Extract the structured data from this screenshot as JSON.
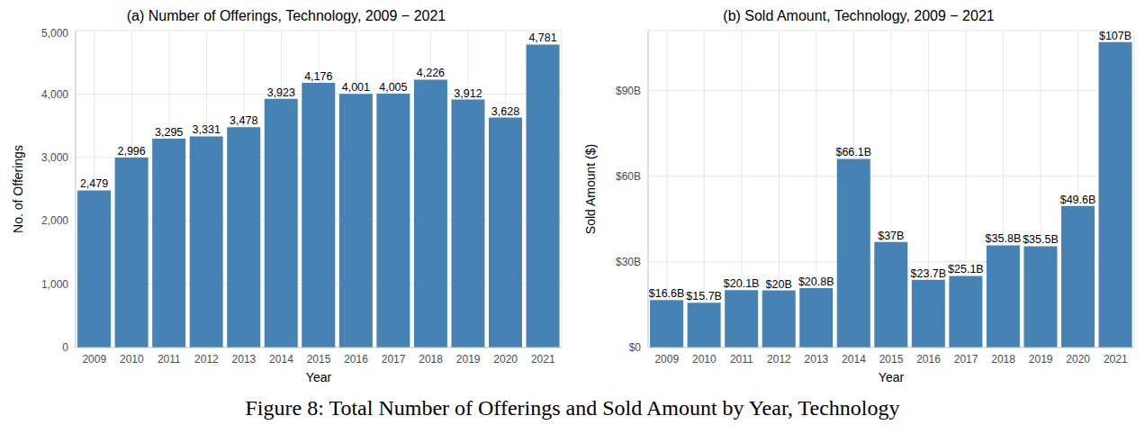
{
  "caption": "Figure 8: Total Number of Offerings and Sold Amount by Year, Technology",
  "chart_data": [
    {
      "type": "bar",
      "title": "(a) Number of Offerings, Technology, 2009 − 2021",
      "x_label": "Year",
      "y_label": "No. of Offerings",
      "categories": [
        "2009",
        "2010",
        "2011",
        "2012",
        "2013",
        "2014",
        "2015",
        "2016",
        "2017",
        "2018",
        "2019",
        "2020",
        "2021"
      ],
      "values": [
        2479,
        2996,
        3295,
        3331,
        3478,
        3923,
        4176,
        4001,
        4005,
        4226,
        3912,
        3628,
        4781
      ],
      "value_labels": [
        "2,479",
        "2,996",
        "3,295",
        "3,331",
        "3,478",
        "3,923",
        "4,176",
        "4,001",
        "4,005",
        "4,226",
        "3,912",
        "3,628",
        "4,781"
      ],
      "data_labels": true,
      "color": "#4682b4",
      "ylim": [
        0,
        5000
      ],
      "yticks": [
        0,
        {
          "value": 1000,
          "label": "1,000"
        },
        {
          "value": 2000,
          "label": "2,000"
        },
        {
          "value": 3000,
          "label": "3,000"
        },
        {
          "value": 4000,
          "label": "4,000"
        },
        {
          "value": 5000,
          "label": "5,000"
        }
      ],
      "grid": true
    },
    {
      "type": "bar",
      "title": "(b) Sold Amount, Technology, 2009 − 2021",
      "x_label": "Year",
      "y_label": "Sold Amount ($)",
      "categories": [
        "2009",
        "2010",
        "2011",
        "2012",
        "2013",
        "2014",
        "2015",
        "2016",
        "2017",
        "2018",
        "2019",
        "2020",
        "2021"
      ],
      "values": [
        16600000000,
        15700000000,
        20100000000,
        20000000000,
        20800000000,
        66100000000,
        37000000000,
        23700000000,
        25100000000,
        35800000000,
        35500000000,
        49600000000,
        107000000000
      ],
      "value_labels": [
        "$16.6B",
        "$15.7B",
        "$20.1B",
        "$20B",
        "$20.8B",
        "$66.1B",
        "$37B",
        "$23.7B",
        "$25.1B",
        "$35.8B",
        "$35.5B",
        "$49.6B",
        "$107B"
      ],
      "data_labels": true,
      "color": "#4682b4",
      "ylim": [
        0,
        111000000000
      ],
      "yticks": [
        {
          "value": 0,
          "label": "$0"
        },
        {
          "value": 30000000000,
          "label": "$30B"
        },
        {
          "value": 60000000000,
          "label": "$60B"
        },
        {
          "value": 90000000000,
          "label": "$90B"
        }
      ],
      "grid": true
    }
  ]
}
